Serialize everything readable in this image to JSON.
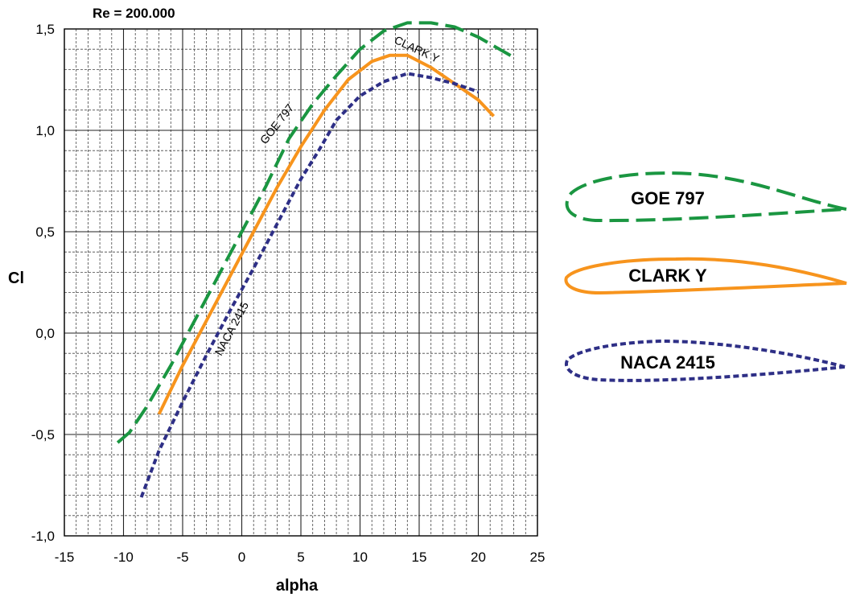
{
  "chart_data": {
    "type": "line",
    "annotation": "Re = 200.000",
    "xlabel": "alpha",
    "ylabel": "Cl",
    "xlim": [
      -15,
      25
    ],
    "ylim": [
      -1.0,
      1.5
    ],
    "x_ticks": [
      "-15",
      "-10",
      "-5",
      "0",
      "5",
      "10",
      "15",
      "20",
      "25"
    ],
    "y_ticks": [
      "-1,0",
      "-0,5",
      "0,0",
      "0,5",
      "1,0",
      "1,5"
    ],
    "grid": "major solid, minor dashed",
    "series": [
      {
        "name": "GOE 797",
        "color": "#1a9641",
        "dash": "long-dash",
        "points": [
          [
            -10.5,
            -0.54
          ],
          [
            -9.5,
            -0.49
          ],
          [
            -8,
            -0.36
          ],
          [
            -6,
            -0.16
          ],
          [
            -4,
            0.06
          ],
          [
            -2,
            0.28
          ],
          [
            0,
            0.5
          ],
          [
            2,
            0.72
          ],
          [
            4,
            0.96
          ],
          [
            6,
            1.13
          ],
          [
            8,
            1.27
          ],
          [
            10,
            1.4
          ],
          [
            12,
            1.49
          ],
          [
            14,
            1.53
          ],
          [
            16,
            1.53
          ],
          [
            18,
            1.51
          ],
          [
            20,
            1.46
          ],
          [
            21.5,
            1.41
          ],
          [
            23,
            1.36
          ]
        ]
      },
      {
        "name": "CLARK Y",
        "color": "#f7941d",
        "dash": "solid",
        "points": [
          [
            -7,
            -0.4
          ],
          [
            -5,
            -0.16
          ],
          [
            -3,
            0.06
          ],
          [
            -1,
            0.28
          ],
          [
            1,
            0.5
          ],
          [
            3,
            0.72
          ],
          [
            5,
            0.92
          ],
          [
            7,
            1.1
          ],
          [
            9,
            1.25
          ],
          [
            11,
            1.34
          ],
          [
            12.5,
            1.37
          ],
          [
            14,
            1.37
          ],
          [
            16,
            1.31
          ],
          [
            18,
            1.23
          ],
          [
            20,
            1.15
          ],
          [
            21.3,
            1.07
          ]
        ]
      },
      {
        "name": "NACA 2415",
        "color": "#2e2f86",
        "dash": "short-dash",
        "points": [
          [
            -8.5,
            -0.81
          ],
          [
            -7,
            -0.58
          ],
          [
            -5,
            -0.34
          ],
          [
            -3,
            -0.11
          ],
          [
            -1,
            0.11
          ],
          [
            1,
            0.32
          ],
          [
            3,
            0.54
          ],
          [
            5,
            0.76
          ],
          [
            6.5,
            0.9
          ],
          [
            8,
            1.05
          ],
          [
            10,
            1.17
          ],
          [
            12,
            1.24
          ],
          [
            14,
            1.28
          ],
          [
            16,
            1.26
          ],
          [
            18,
            1.23
          ],
          [
            20,
            1.19
          ]
        ]
      }
    ],
    "curve_labels": [
      "GOE 797",
      "CLARK Y",
      "NACA 2415"
    ],
    "legend": {
      "placement": "right",
      "entries": [
        {
          "name": "GOE 797",
          "color": "#1a9641"
        },
        {
          "name": "CLARK Y",
          "color": "#f7941d"
        },
        {
          "name": "NACA 2415",
          "color": "#2e2f86"
        }
      ]
    }
  }
}
